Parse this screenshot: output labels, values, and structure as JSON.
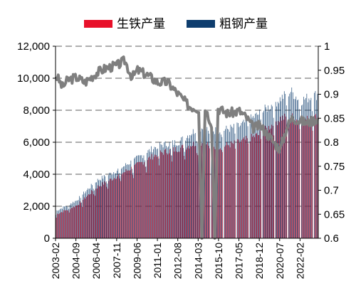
{
  "chart_data": {
    "type": "bar+line",
    "title": "",
    "legend": {
      "placement": "top-center",
      "items": [
        {
          "label": "生铁产量",
          "color": "#e8102a"
        },
        {
          "label": "粗钢产量",
          "color": "#0e3d6e"
        }
      ]
    },
    "x_axis": {
      "tick_labels": [
        "2003-02",
        "2004-09",
        "2006-04",
        "2007-11",
        "2009-06",
        "2011-01",
        "2012-08",
        "2014-03",
        "2015-10",
        "2017-05",
        "2018-12",
        "2020-07",
        "2022-02"
      ],
      "start": "2003-02",
      "end": "2023-06"
    },
    "y_left": {
      "ylim": [
        0,
        12000
      ],
      "tick_labels": [
        "0",
        "2,000",
        "4,000",
        "6,000",
        "8,000",
        "10,000",
        "12,000"
      ],
      "tick_values": [
        0,
        2000,
        4000,
        6000,
        8000,
        10000,
        12000
      ]
    },
    "y_right": {
      "ylim": [
        0.6,
        1.0
      ],
      "tick_labels": [
        "0.6",
        "0.65",
        "0.7",
        "0.75",
        "0.8",
        "0.85",
        "0.9",
        "0.95",
        "1"
      ],
      "tick_values": [
        0.6,
        0.65,
        0.7,
        0.75,
        0.8,
        0.85,
        0.9,
        0.95,
        1.0
      ]
    },
    "grid": "horizontal-dashed",
    "series_keypoints": {
      "crude_steel": [
        [
          "2003-02",
          1700
        ],
        [
          "2004-09",
          2350
        ],
        [
          "2006-04",
          3600
        ],
        [
          "2007-11",
          4250
        ],
        [
          "2009-06",
          5000
        ],
        [
          "2011-01",
          5800
        ],
        [
          "2012-08",
          6000
        ],
        [
          "2014-03",
          6900
        ],
        [
          "2015-10",
          6700
        ],
        [
          "2017-05",
          7000
        ],
        [
          "2018-12",
          7800
        ],
        [
          "2020-07",
          8700
        ],
        [
          "2021-05",
          9200
        ],
        [
          "2022-02",
          8600
        ],
        [
          "2023-06",
          9000
        ]
      ],
      "pig_iron": [
        [
          "2003-02",
          1500
        ],
        [
          "2004-09",
          2050
        ],
        [
          "2006-04",
          3200
        ],
        [
          "2007-11",
          3900
        ],
        [
          "2009-06",
          4600
        ],
        [
          "2011-01",
          5300
        ],
        [
          "2012-08",
          5600
        ],
        [
          "2014-03",
          6000
        ],
        [
          "2015-10",
          5700
        ],
        [
          "2017-05",
          6000
        ],
        [
          "2018-12",
          6500
        ],
        [
          "2020-07",
          7500
        ],
        [
          "2021-05",
          7600
        ],
        [
          "2022-02",
          7300
        ],
        [
          "2023-06",
          7600
        ]
      ],
      "ratio": [
        [
          "2003-02",
          0.94
        ],
        [
          "2003-08",
          0.915
        ],
        [
          "2004-01",
          0.93
        ],
        [
          "2004-09",
          0.935
        ],
        [
          "2005-05",
          0.925
        ],
        [
          "2006-04",
          0.945
        ],
        [
          "2007-01",
          0.955
        ],
        [
          "2007-11",
          0.96
        ],
        [
          "2008-06",
          0.97
        ],
        [
          "2009-01",
          0.935
        ],
        [
          "2009-06",
          0.95
        ],
        [
          "2010-03",
          0.94
        ],
        [
          "2011-01",
          0.925
        ],
        [
          "2011-10",
          0.925
        ],
        [
          "2012-08",
          0.9
        ],
        [
          "2013-06",
          0.875
        ],
        [
          "2014-03",
          0.87
        ],
        [
          "2014-06",
          0.6
        ],
        [
          "2014-09",
          0.87
        ],
        [
          "2015-03",
          0.84
        ],
        [
          "2015-06",
          0.6
        ],
        [
          "2015-09",
          0.87
        ],
        [
          "2016-06",
          0.86
        ],
        [
          "2017-05",
          0.865
        ],
        [
          "2017-12",
          0.85
        ],
        [
          "2018-06",
          0.83
        ],
        [
          "2018-12",
          0.835
        ],
        [
          "2019-06",
          0.82
        ],
        [
          "2020-01",
          0.8
        ],
        [
          "2020-07",
          0.785
        ],
        [
          "2021-01",
          0.83
        ],
        [
          "2021-06",
          0.85
        ],
        [
          "2022-02",
          0.845
        ],
        [
          "2022-08",
          0.84
        ],
        [
          "2023-06",
          0.85
        ]
      ]
    }
  }
}
